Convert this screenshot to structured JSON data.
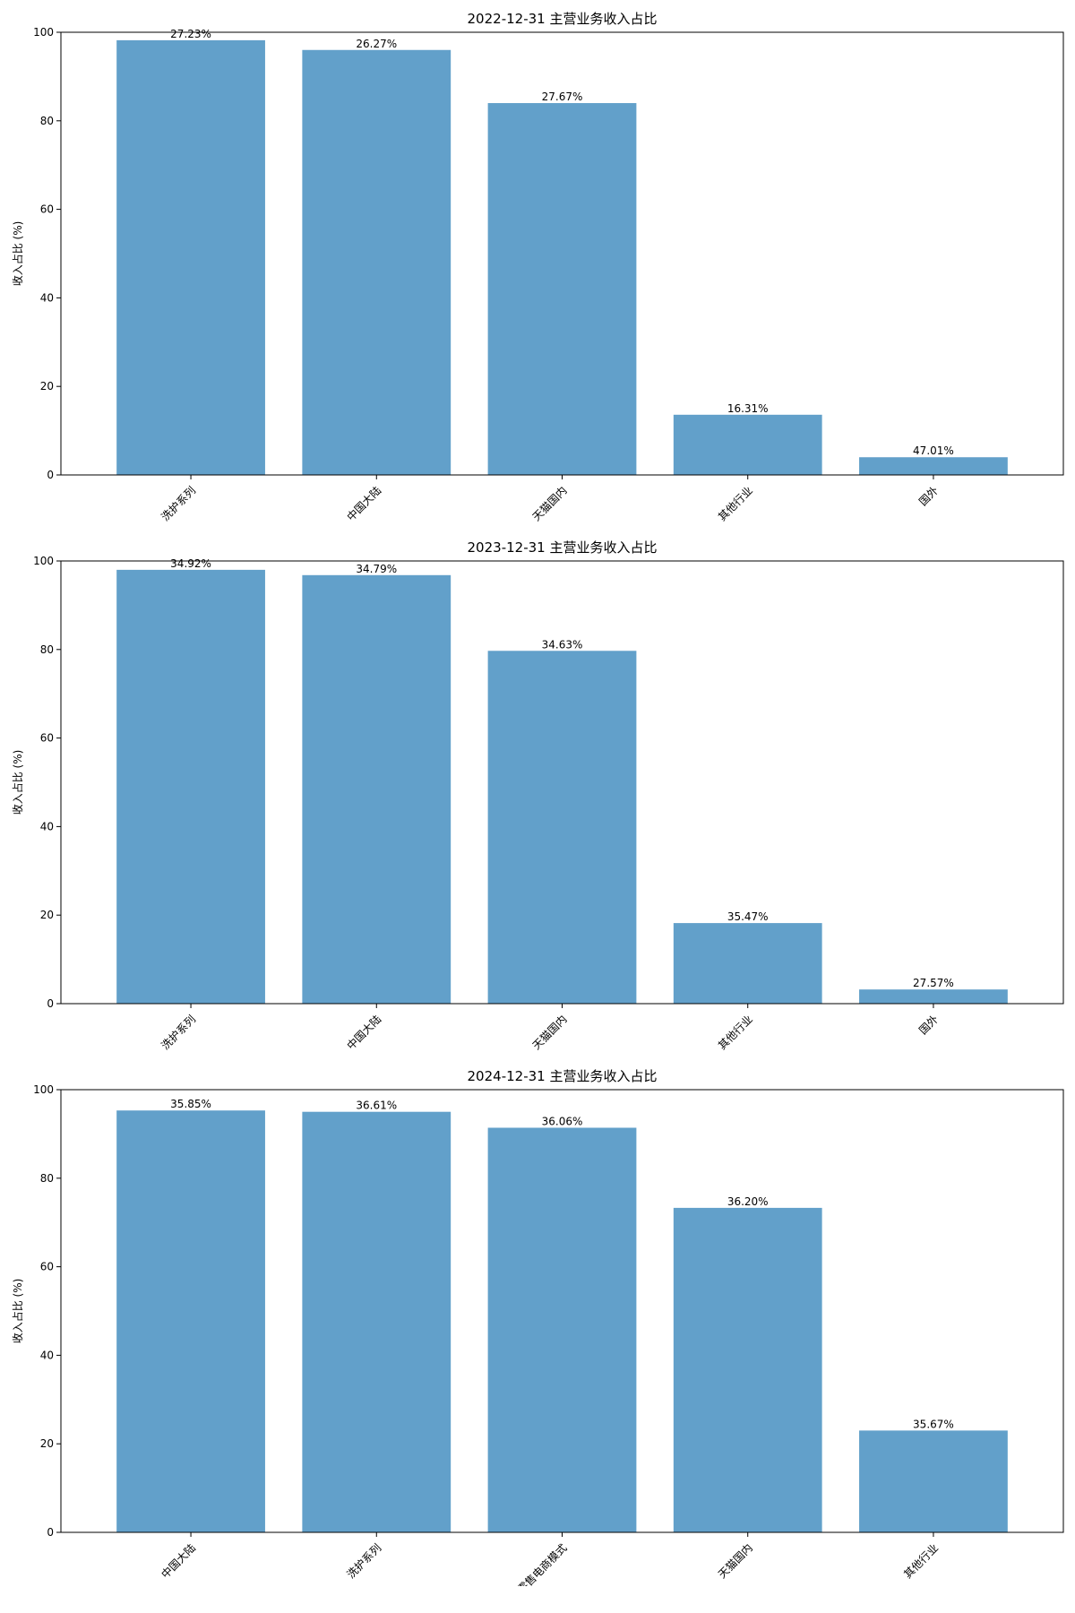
{
  "chart_data": [
    {
      "type": "bar",
      "title": "2022-12-31 主营业务收入占比",
      "ylabel": "收入占比 (%)",
      "ylim": [
        0,
        100
      ],
      "yticks": [
        0,
        20,
        40,
        60,
        80,
        100
      ],
      "categories": [
        "洗护系列",
        "中国大陆",
        "天猫国内",
        "其他行业",
        "国外"
      ],
      "values": [
        98.2,
        96.0,
        84.0,
        13.6,
        4.0
      ],
      "labels": [
        "27.23%",
        "26.27%",
        "27.67%",
        "16.31%",
        "47.01%"
      ],
      "color": "#1f77b4",
      "grid": false
    },
    {
      "type": "bar",
      "title": "2023-12-31 主营业务收入占比",
      "ylabel": "收入占比 (%)",
      "ylim": [
        0,
        100
      ],
      "yticks": [
        0,
        20,
        40,
        60,
        80,
        100
      ],
      "categories": [
        "洗护系列",
        "中国大陆",
        "天猫国内",
        "其他行业",
        "国外"
      ],
      "values": [
        98.0,
        96.8,
        79.7,
        18.2,
        3.2
      ],
      "labels": [
        "34.92%",
        "34.79%",
        "34.63%",
        "35.47%",
        "27.57%"
      ],
      "color": "#1f77b4",
      "grid": false
    },
    {
      "type": "bar",
      "title": "2024-12-31 主营业务收入占比",
      "ylabel": "收入占比 (%)",
      "ylim": [
        0,
        100
      ],
      "yticks": [
        0,
        20,
        40,
        60,
        80,
        100
      ],
      "categories": [
        "中国大陆",
        "洗护系列",
        "零售电商模式",
        "天猫国内",
        "其他行业"
      ],
      "values": [
        95.3,
        95.0,
        91.4,
        73.3,
        23.0
      ],
      "labels": [
        "35.85%",
        "36.61%",
        "36.06%",
        "36.20%",
        "35.67%"
      ],
      "color": "#1f77b4",
      "grid": false
    }
  ]
}
